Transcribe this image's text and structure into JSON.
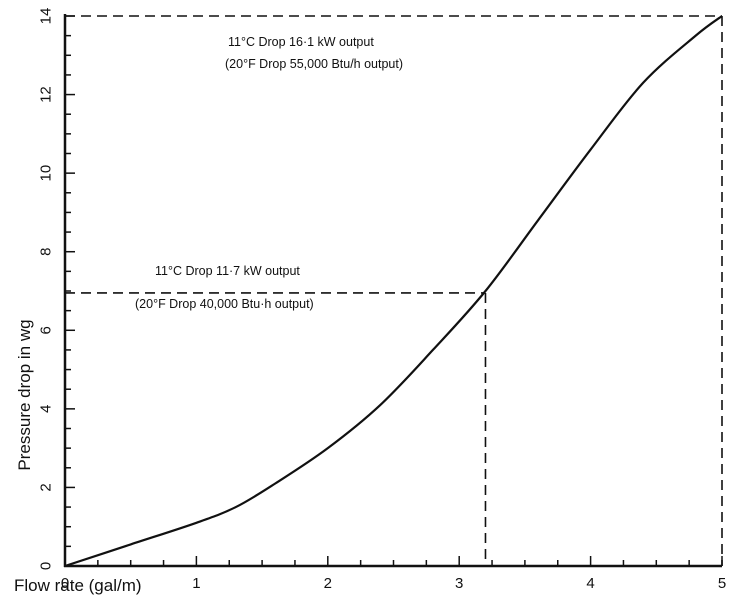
{
  "chart_data": {
    "type": "line",
    "xlabel": "Flow rate (gal/m)",
    "ylabel": "Pressure drop in wg",
    "xlim": [
      0,
      5
    ],
    "ylim": [
      0,
      14
    ],
    "x_ticks": [
      0,
      1,
      2,
      3,
      4,
      5
    ],
    "y_ticks": [
      0,
      2,
      4,
      6,
      8,
      10,
      12,
      14
    ],
    "grid": false,
    "series": [
      {
        "x": [
          0,
          0.5,
          1.0,
          1.3,
          1.6,
          2.0,
          2.4,
          2.8,
          3.2,
          3.6,
          4.0,
          4.4,
          4.8,
          5.0
        ],
        "y": [
          0,
          0.55,
          1.1,
          1.5,
          2.1,
          3.0,
          4.1,
          5.5,
          7.0,
          8.8,
          10.6,
          12.3,
          13.5,
          14.0
        ]
      }
    ],
    "reference_points": [
      {
        "x": 3.2,
        "y": 6.95
      },
      {
        "x": 5.0,
        "y": 14.0
      }
    ],
    "annotations": [
      {
        "line1": "11°C Drop 16·1 kW output",
        "line2": "(20°F Drop 55,000 Btu/h output)"
      },
      {
        "line1": "11°C Drop 11·7 kW output",
        "line2": "(20°F Drop 40,000 Btu·h output)"
      }
    ]
  }
}
